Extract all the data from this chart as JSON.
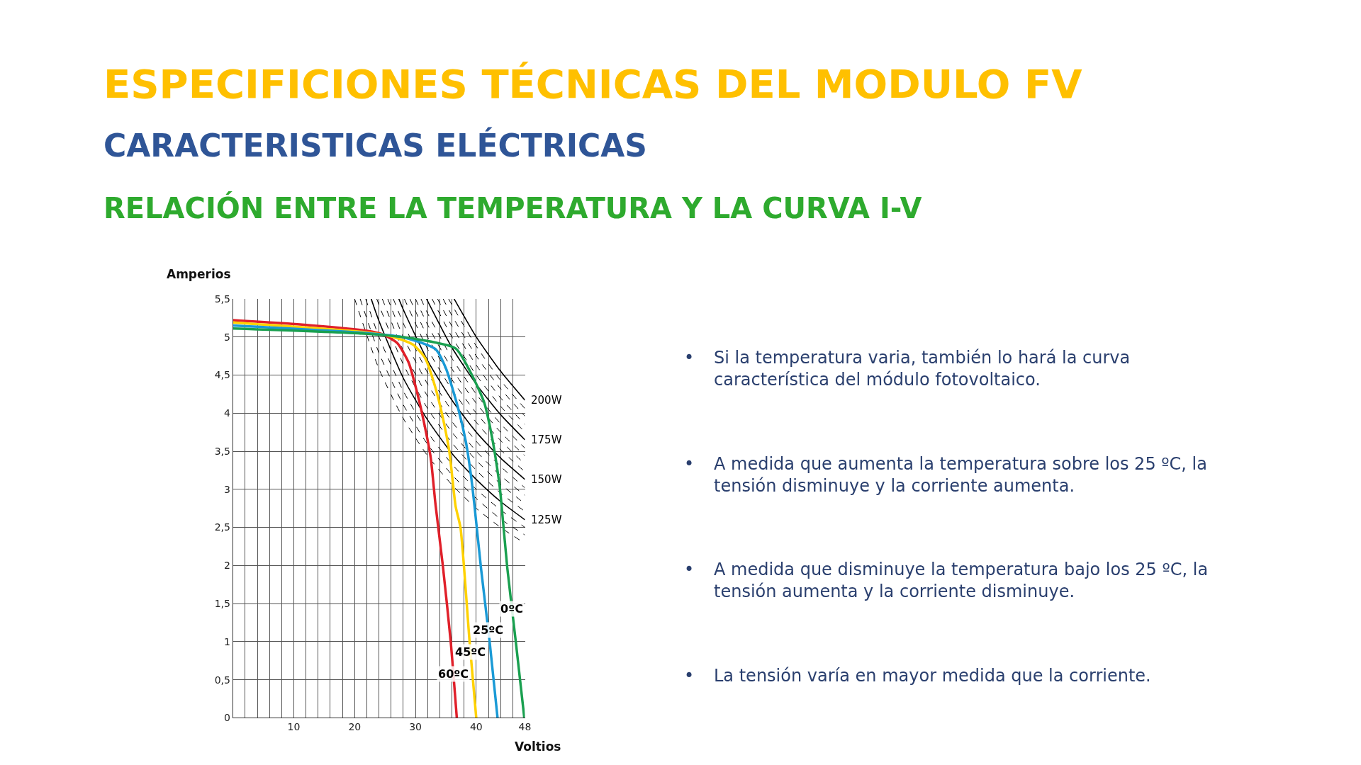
{
  "chart_data": {
    "type": "line",
    "title": "ESPECIFICIONES TÉCNICAS DEL MODULO FV",
    "subtitle": "CARACTERISTICAS ELÉCTRICAS",
    "xlabel": "Voltios",
    "ylabel": "Amperios",
    "annotations": [
      "RELACIÓN ENTRE LA TEMPERATURA Y LA CURVA I-V",
      "• Si la temperatura varia, también lo hará la curva característica del módulo fotovoltaico.",
      "• A medida que aumenta la temperatura sobre los 25 ºC, la tensión disminuye y la corriente aumenta.",
      "• A medida que disminuye la temperatura bajo los 25 ºC, la tensión aumenta y la corriente disminuye.",
      "• La tensión varía en mayor medida que la corriente."
    ],
    "xlim": [
      0,
      48
    ],
    "ylim": [
      0,
      5.5
    ],
    "xticks": [
      {
        "value": 0,
        "label": null
      },
      {
        "value": 2,
        "label": null
      },
      {
        "value": 4,
        "label": null
      },
      {
        "value": 6,
        "label": null
      },
      {
        "value": 8,
        "label": null
      },
      10,
      {
        "value": 12,
        "label": null
      },
      {
        "value": 14,
        "label": null
      },
      {
        "value": 16,
        "label": null
      },
      {
        "value": 18,
        "label": null
      },
      20,
      {
        "value": 22,
        "label": null
      },
      {
        "value": 24,
        "label": null
      },
      {
        "value": 26,
        "label": null
      },
      {
        "value": 28,
        "label": null
      },
      30,
      {
        "value": 32,
        "label": null
      },
      {
        "value": 34,
        "label": null
      },
      {
        "value": 36,
        "label": null
      },
      {
        "value": 38,
        "label": null
      },
      40,
      {
        "value": 42,
        "label": null
      },
      {
        "value": 44,
        "label": null
      },
      {
        "value": 46,
        "label": null
      },
      48
    ],
    "yticks": [
      0,
      {
        "value": 0.5,
        "label": "0,5"
      },
      1,
      {
        "value": 1.5,
        "label": "1,5"
      },
      2,
      {
        "value": 2.5,
        "label": "2,5"
      },
      3,
      {
        "value": 3.5,
        "label": "3,5"
      },
      4,
      {
        "value": 4.5,
        "label": "4,5"
      },
      5,
      {
        "value": 5.5,
        "label": "5,5"
      }
    ],
    "grid": true,
    "legend": false,
    "marker": "none",
    "series": [
      {
        "color": "#000000",
        "line_style": "dashed",
        "x": [
          20,
          24,
          28,
          32,
          36,
          40,
          44,
          48
        ],
        "values": [
          5.5,
          4.58,
          3.93,
          3.44,
          3.06,
          2.75,
          2.5,
          2.29
        ]
      },
      {
        "color": "#000000",
        "line_style": "dashed",
        "x": [
          20.91,
          24,
          28,
          32,
          36,
          40,
          44,
          48
        ],
        "values": [
          5.5,
          4.79,
          4.11,
          3.59,
          3.19,
          2.88,
          2.61,
          2.4
        ]
      },
      {
        "color": "#000000",
        "line_style": "dashed",
        "x": [
          21.82,
          24,
          28,
          32,
          36,
          40,
          44,
          48
        ],
        "values": [
          5.5,
          5.0,
          4.29,
          3.75,
          3.33,
          3.0,
          2.73,
          2.5
        ]
      },
      {
        "name": "125W",
        "color": "#000000",
        "line_style": "solid",
        "x": [
          22.73,
          24,
          28,
          32,
          36,
          40,
          44,
          48
        ],
        "values": [
          5.5,
          5.21,
          4.46,
          3.91,
          3.47,
          3.13,
          2.84,
          2.6
        ]
      },
      {
        "color": "#000000",
        "line_style": "dashed",
        "x": [
          23.64,
          24,
          28,
          32,
          36,
          40,
          44,
          48
        ],
        "values": [
          5.5,
          5.42,
          4.64,
          4.06,
          3.61,
          3.25,
          2.95,
          2.71
        ]
      },
      {
        "color": "#000000",
        "line_style": "dashed",
        "x": [
          24.55,
          28,
          32,
          36,
          40,
          44,
          48
        ],
        "values": [
          5.5,
          4.82,
          4.22,
          3.75,
          3.38,
          3.07,
          2.81
        ]
      },
      {
        "color": "#000000",
        "line_style": "dashed",
        "x": [
          25.45,
          28,
          32,
          36,
          40,
          44,
          48
        ],
        "values": [
          5.5,
          5.0,
          4.38,
          3.89,
          3.5,
          3.18,
          2.92
        ]
      },
      {
        "color": "#000000",
        "line_style": "dashed",
        "x": [
          26.36,
          28,
          32,
          36,
          40,
          44,
          48
        ],
        "values": [
          5.5,
          5.18,
          4.53,
          4.03,
          3.63,
          3.3,
          3.02
        ]
      },
      {
        "name": "150W",
        "color": "#000000",
        "line_style": "solid",
        "x": [
          27.27,
          28,
          32,
          36,
          40,
          44,
          48
        ],
        "values": [
          5.5,
          5.36,
          4.69,
          4.17,
          3.75,
          3.41,
          3.13
        ]
      },
      {
        "color": "#000000",
        "line_style": "dashed",
        "x": [
          28.18,
          32,
          36,
          40,
          44,
          48
        ],
        "values": [
          5.5,
          4.84,
          4.31,
          3.88,
          3.52,
          3.23
        ]
      },
      {
        "color": "#000000",
        "line_style": "dashed",
        "x": [
          29.09,
          32,
          36,
          40,
          44,
          48
        ],
        "values": [
          5.5,
          5.0,
          4.44,
          4.0,
          3.64,
          3.33
        ]
      },
      {
        "color": "#000000",
        "line_style": "dashed",
        "x": [
          30,
          32,
          36,
          40,
          44,
          48
        ],
        "values": [
          5.5,
          5.16,
          4.58,
          4.13,
          3.75,
          3.44
        ]
      },
      {
        "color": "#000000",
        "line_style": "dashed",
        "x": [
          30.91,
          32,
          36,
          40,
          44,
          48
        ],
        "values": [
          5.5,
          5.31,
          4.72,
          4.25,
          3.86,
          3.54
        ]
      },
      {
        "name": "175W",
        "color": "#000000",
        "line_style": "solid",
        "x": [
          31.82,
          36,
          40,
          44,
          48
        ],
        "values": [
          5.5,
          4.86,
          4.38,
          3.98,
          3.65
        ]
      },
      {
        "color": "#000000",
        "line_style": "dashed",
        "x": [
          32.73,
          36,
          40,
          44,
          48
        ],
        "values": [
          5.5,
          5.0,
          4.5,
          4.09,
          3.75
        ]
      },
      {
        "color": "#000000",
        "line_style": "dashed",
        "x": [
          33.64,
          36,
          40,
          44,
          48
        ],
        "values": [
          5.5,
          5.14,
          4.63,
          4.2,
          3.85
        ]
      },
      {
        "color": "#000000",
        "line_style": "dashed",
        "x": [
          34.55,
          36,
          40,
          44,
          48
        ],
        "values": [
          5.5,
          5.28,
          4.75,
          4.32,
          3.96
        ]
      },
      {
        "color": "#000000",
        "line_style": "dashed",
        "x": [
          35.45,
          36,
          40,
          44,
          48
        ],
        "values": [
          5.5,
          5.42,
          4.88,
          4.43,
          4.06
        ]
      },
      {
        "name": "200W",
        "color": "#000000",
        "line_style": "solid",
        "x": [
          36.36,
          40,
          44,
          48
        ],
        "values": [
          5.5,
          5.0,
          4.55,
          4.17
        ]
      },
      {
        "name": "60ºC",
        "color": "#e0202a",
        "line_style": "solid",
        "x": [
          0,
          11.7,
          22.0,
          24.7,
          27.0,
          28.9,
          30.4,
          31.4,
          32.5,
          33.3,
          34.5,
          35.8,
          36.8
        ],
        "values": [
          5.22,
          5.16,
          5.08,
          5.03,
          4.92,
          4.66,
          4.23,
          3.88,
          3.42,
          2.8,
          2.0,
          1.0,
          0
        ]
      },
      {
        "name": "45ºC",
        "color": "#ffd200",
        "line_style": "solid",
        "x": [
          0,
          22,
          25.9,
          29.6,
          31.6,
          33.3,
          34.5,
          35.6,
          36.6,
          37.4,
          38.9,
          40
        ],
        "values": [
          5.19,
          5.06,
          5.01,
          4.9,
          4.72,
          4.33,
          3.94,
          3.48,
          2.78,
          2.5,
          1.0,
          0
        ]
      },
      {
        "name": "25ºC",
        "color": "#1a9ad6",
        "line_style": "solid",
        "x": [
          0,
          22,
          27.8,
          33.3,
          35.0,
          37.0,
          38.3,
          39.1,
          39.7,
          40.8,
          42.2,
          43.5
        ],
        "values": [
          5.15,
          5.05,
          5.0,
          4.84,
          4.59,
          4.07,
          3.62,
          3.2,
          2.79,
          1.95,
          1.0,
          0
        ]
      },
      {
        "name": "0ºC",
        "color": "#1aa050",
        "line_style": "solid",
        "x": [
          0,
          22,
          29.6,
          36.6,
          39.1,
          41.3,
          42.6,
          43.7,
          44.0,
          45.1,
          46.5,
          47.9
        ],
        "values": [
          5.11,
          5.04,
          4.98,
          4.85,
          4.53,
          4.14,
          3.68,
          3.13,
          2.93,
          1.97,
          1.0,
          0
        ]
      }
    ]
  }
}
